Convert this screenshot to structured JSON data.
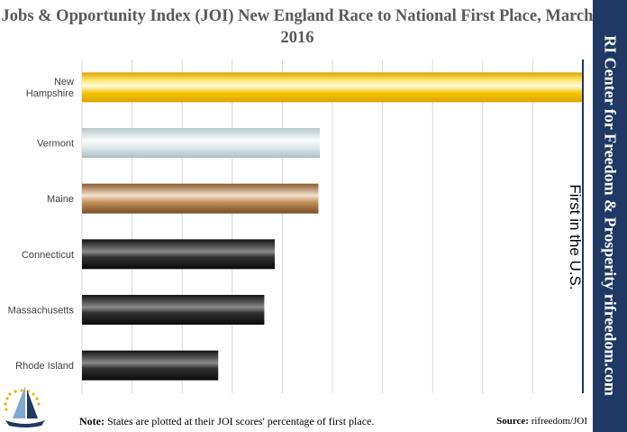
{
  "chart_data": {
    "type": "bar",
    "orientation": "horizontal",
    "title": "Jobs & Opportunity Index (JOI) New England Race to National First Place, March 2016",
    "categories": [
      "New Hampshire",
      "Vermont",
      "Maine",
      "Connecticut",
      "Massachusetts",
      "Rhode Island"
    ],
    "values": [
      100,
      47.5,
      47.2,
      38.5,
      36.4,
      27.2
    ],
    "xlim": [
      0,
      100
    ],
    "grid": true,
    "colors": {
      "New Hampshire": "#f2c200",
      "Vermont": "#c8d6da",
      "Maine": "#9a6b3c",
      "Connecticut": "#1a1a1a",
      "Massachusetts": "#1a1a1a",
      "Rhode Island": "#1a1a1a"
    },
    "annotation": "First in the U.S."
  },
  "side_banner": "RI Center for Freedom & Prosperity      rifreedom.com",
  "footer": {
    "note_label": "Note:",
    "note_text": " States are plotted at their JOI scores' percentage of first place.",
    "source_label": "Source:",
    "source_text": " rifreedom/JOI"
  },
  "colors": {
    "banner": "#1f3864",
    "first_place_line": "#1f3864",
    "grid": "#d9d9d9"
  }
}
